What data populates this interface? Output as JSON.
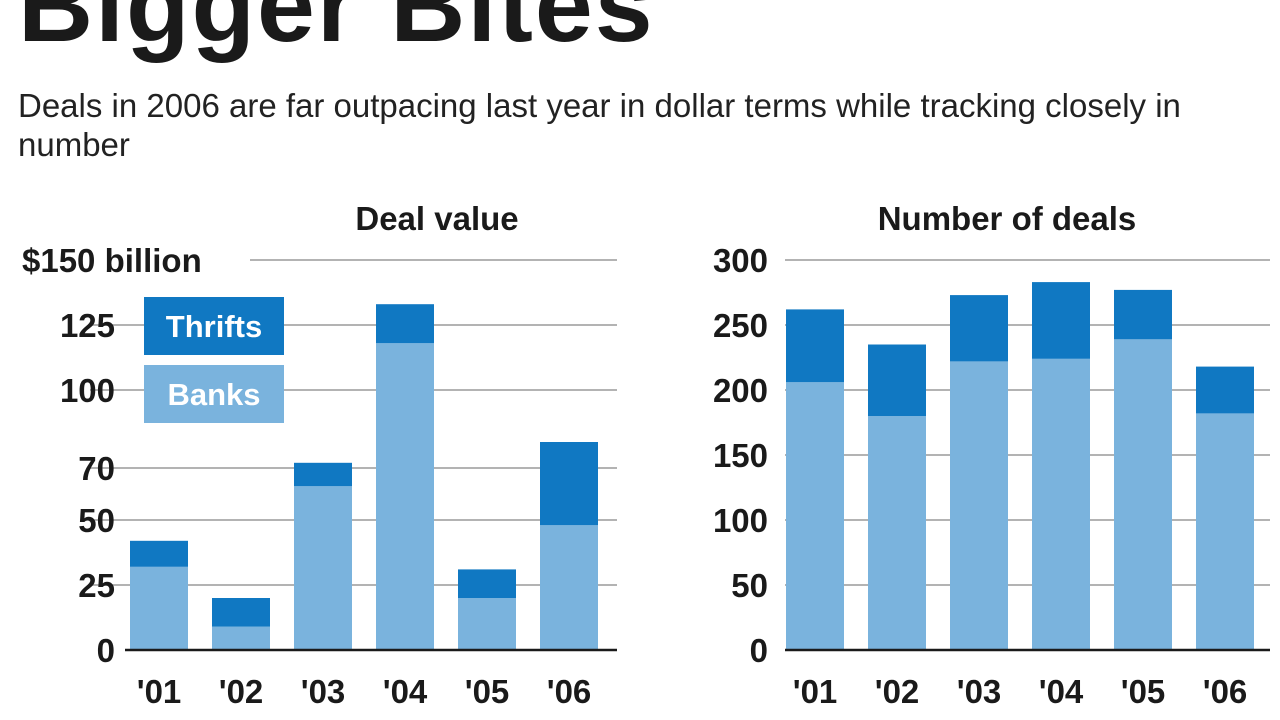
{
  "headline": "Bigger Bites",
  "subtitle": "Deals in 2006 are far outpacing last year in dollar terms while tracking closely in number",
  "colors": {
    "banks": "#7ab3dd",
    "thrifts": "#1078c2"
  },
  "chart_data": [
    {
      "type": "bar",
      "stacked": true,
      "title": "Deal value",
      "categories": [
        "'01",
        "'02",
        "'03",
        "'04",
        "'05",
        "'06"
      ],
      "yticks": [
        0,
        25,
        50,
        70,
        100,
        125,
        150
      ],
      "ytick_labels": [
        "0",
        "25",
        "50",
        "70",
        "100",
        "125",
        "$150 billion"
      ],
      "ylim": [
        0,
        150
      ],
      "series": [
        {
          "name": "Banks",
          "values": [
            32,
            9,
            63,
            118,
            20,
            48
          ]
        },
        {
          "name": "Thrifts",
          "values": [
            10,
            11,
            9,
            15,
            11,
            32
          ]
        }
      ],
      "legend": {
        "placement": "top-left",
        "items": [
          "Thrifts",
          "Banks"
        ]
      },
      "grid": true
    },
    {
      "type": "bar",
      "stacked": true,
      "title": "Number of deals",
      "categories": [
        "'01",
        "'02",
        "'03",
        "'04",
        "'05",
        "'06"
      ],
      "yticks": [
        0,
        50,
        100,
        150,
        200,
        250,
        300
      ],
      "ytick_labels": [
        "0",
        "50",
        "100",
        "150",
        "200",
        "250",
        "300"
      ],
      "ylim": [
        0,
        300
      ],
      "series": [
        {
          "name": "Banks",
          "values": [
            206,
            180,
            222,
            224,
            239,
            182
          ]
        },
        {
          "name": "Thrifts",
          "values": [
            56,
            55,
            51,
            59,
            38,
            36
          ]
        }
      ],
      "grid": true
    }
  ]
}
